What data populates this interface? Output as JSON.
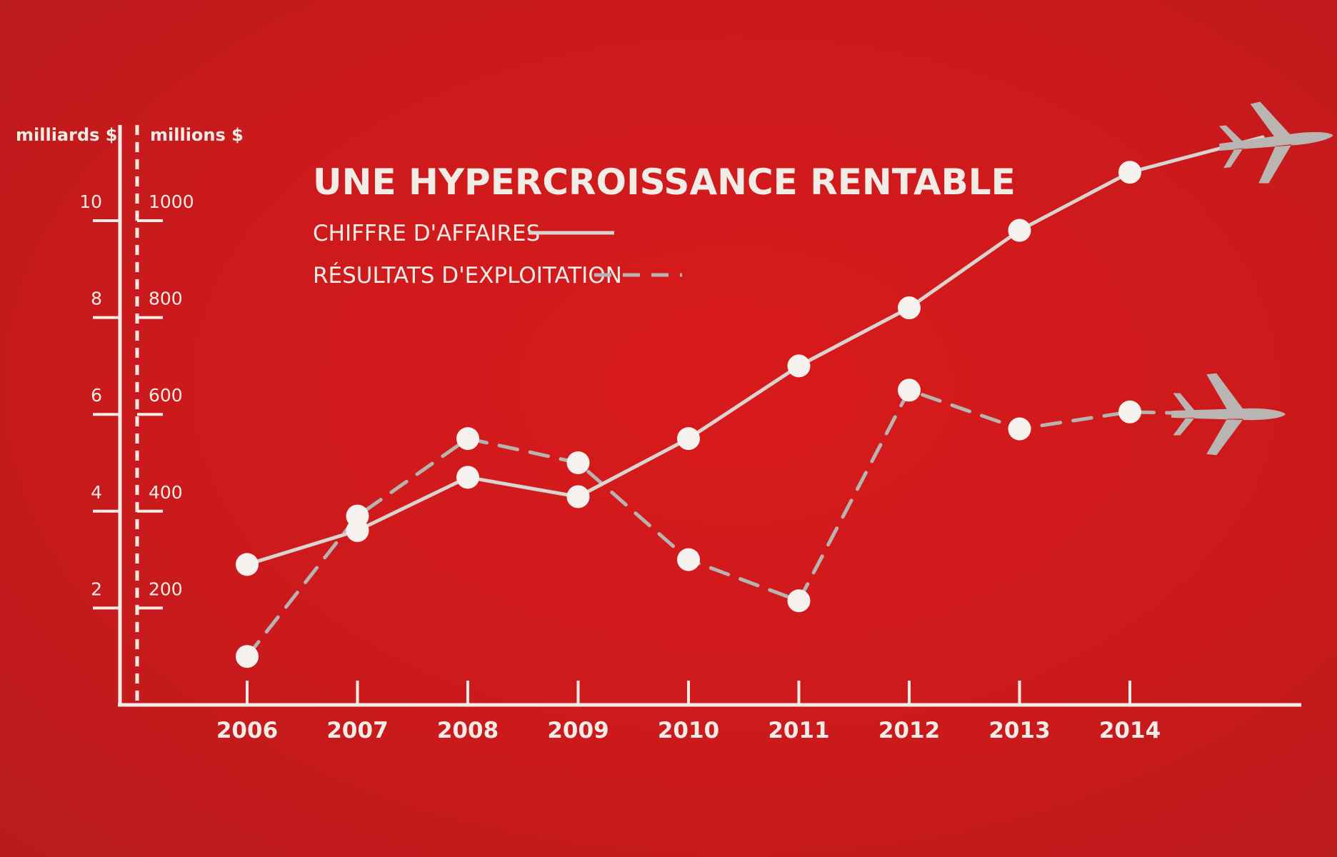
{
  "chart_data": {
    "type": "line",
    "title": "UNE HYPERCROISSANCE RENTABLE",
    "axes": {
      "left_title": "milliards $",
      "right_title": "millions $",
      "left_ticks": [
        "10",
        "8",
        "6",
        "4",
        "2"
      ],
      "right_ticks": [
        "1000",
        "800",
        "600",
        "400",
        "200"
      ],
      "ylim_left": [
        0,
        10
      ],
      "ylim_right": [
        0,
        1000
      ]
    },
    "categories": [
      "2006",
      "2007",
      "2008",
      "2009",
      "2010",
      "2011",
      "2012",
      "2013",
      "2014"
    ],
    "series": [
      {
        "name": "CHIFFRE D'AFFAIRES",
        "axis": "left",
        "style": "solid",
        "values": [
          2.9,
          3.6,
          4.7,
          4.3,
          5.5,
          7.0,
          8.2,
          9.8,
          11.0
        ]
      },
      {
        "name": "RÉSULTATS D'EXPLOITATION",
        "axis": "right",
        "style": "dashed",
        "values": [
          100,
          390,
          550,
          500,
          300,
          215,
          650,
          570,
          605
        ]
      }
    ],
    "grid": false,
    "legend": "top-left"
  },
  "colors": {
    "background": "#cc1a1c",
    "line_solid": "#d9d4cf",
    "line_dashed": "#b7b3b0",
    "marker": "#f4f1ee",
    "axis": "#f2ece6",
    "plane": "#b9b5b2"
  },
  "decorations": [
    "airplane-icon",
    "airplane-icon"
  ]
}
